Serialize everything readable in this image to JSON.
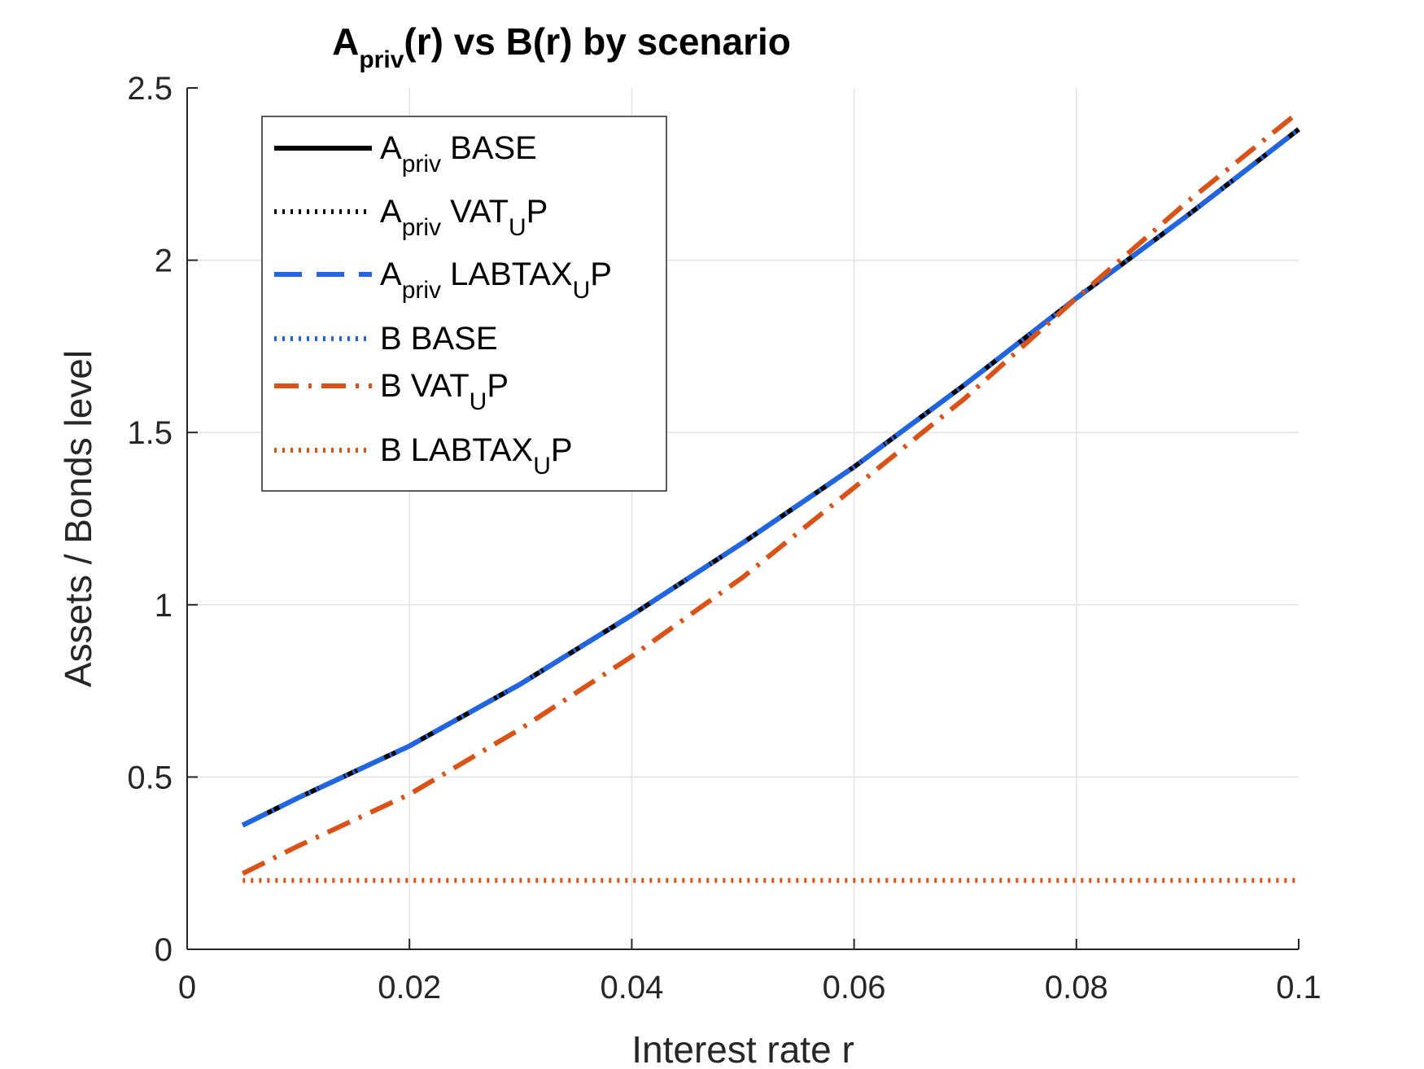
{
  "chart_data": {
    "type": "line",
    "title": {
      "pre": "A",
      "sub": "priv",
      "post": "(r) vs B(r) by scenario"
    },
    "xlabel": "Interest rate r",
    "ylabel": "Assets / Bonds level",
    "xlim": [
      0,
      0.1
    ],
    "ylim": [
      0,
      2.5
    ],
    "xticks": [
      0,
      0.02,
      0.04,
      0.06,
      0.08,
      0.1
    ],
    "xtick_labels": [
      "0",
      "0.02",
      "0.04",
      "0.06",
      "0.08",
      "0.1"
    ],
    "yticks": [
      0,
      0.5,
      1,
      1.5,
      2,
      2.5
    ],
    "ytick_labels": [
      "0",
      "0.5",
      "1",
      "1.5",
      "2",
      "2.5"
    ],
    "grid": true,
    "legend_position": "top-left",
    "x": [
      0.005,
      0.01,
      0.02,
      0.03,
      0.04,
      0.05,
      0.06,
      0.07,
      0.08,
      0.09,
      0.1
    ],
    "series": [
      {
        "name": {
          "pre": "A",
          "sub": "priv",
          "mid": " BASE",
          "sub2": "",
          "post": ""
        },
        "color": "#000000",
        "style": "solid",
        "values": [
          0.36,
          0.44,
          0.59,
          0.77,
          0.97,
          1.18,
          1.4,
          1.64,
          1.89,
          2.13,
          2.38
        ]
      },
      {
        "name": {
          "pre": "A",
          "sub": "priv",
          "mid": " VAT",
          "sub2": "U",
          "post": "P"
        },
        "color": "#000000",
        "style": "dotted",
        "values": [
          0.36,
          0.44,
          0.59,
          0.77,
          0.97,
          1.18,
          1.4,
          1.64,
          1.89,
          2.13,
          2.38
        ]
      },
      {
        "name": {
          "pre": "A",
          "sub": "priv",
          "mid": " LABTAX",
          "sub2": "U",
          "post": "P"
        },
        "color": "#2166e0",
        "style": "dashed",
        "values": [
          0.36,
          0.44,
          0.59,
          0.77,
          0.97,
          1.18,
          1.4,
          1.64,
          1.89,
          2.13,
          2.38
        ]
      },
      {
        "name": {
          "pre": "B BASE",
          "sub": "",
          "mid": "",
          "sub2": "",
          "post": ""
        },
        "color": "#2166e0",
        "style": "dotted",
        "values": [
          0.36,
          0.44,
          0.59,
          0.77,
          0.97,
          1.18,
          1.4,
          1.64,
          1.89,
          2.13,
          2.38
        ]
      },
      {
        "name": {
          "pre": "B VAT",
          "sub": "U",
          "mid": "P",
          "sub2": "",
          "post": ""
        },
        "color": "#d95319",
        "style": "dashdot",
        "values": [
          0.22,
          0.3,
          0.45,
          0.64,
          0.85,
          1.08,
          1.34,
          1.6,
          1.89,
          2.17,
          2.43
        ]
      },
      {
        "name": {
          "pre": "B LABTAX",
          "sub": "U",
          "mid": "P",
          "sub2": "",
          "post": ""
        },
        "color": "#d95319",
        "style": "dotted",
        "values": [
          0.2,
          0.2,
          0.2,
          0.2,
          0.2,
          0.2,
          0.2,
          0.2,
          0.2,
          0.2,
          0.2
        ]
      }
    ]
  }
}
